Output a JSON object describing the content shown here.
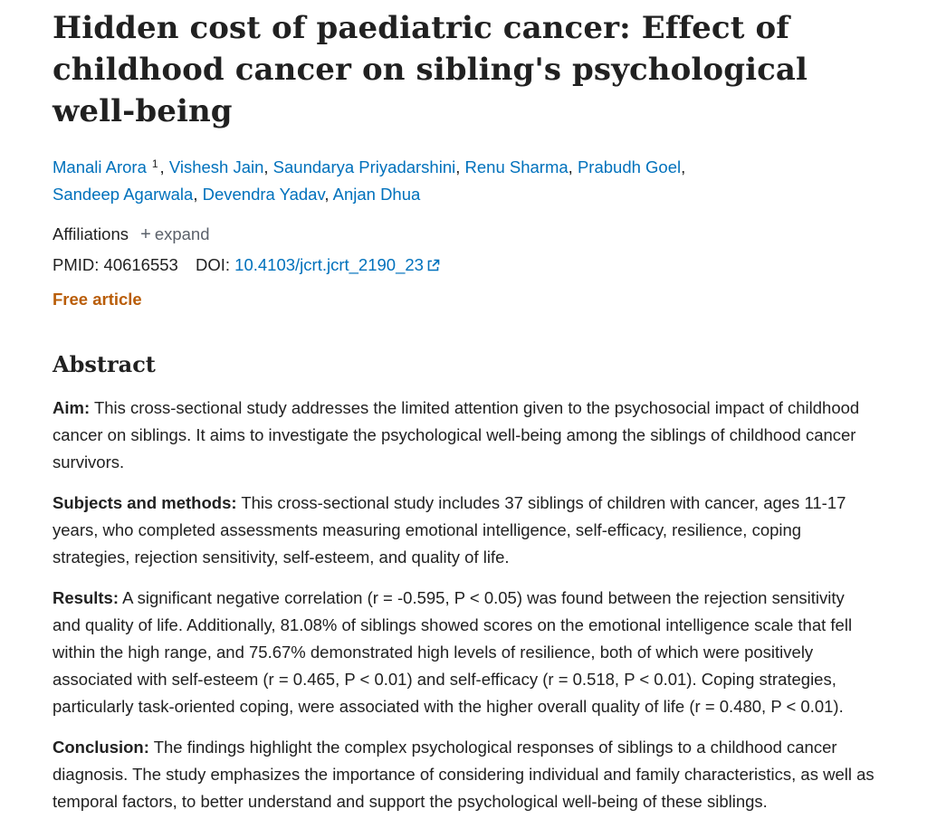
{
  "article": {
    "title": "Hidden cost of paediatric cancer: Effect of childhood cancer on sibling's psychological well-being",
    "authors": [
      {
        "name": "Manali Arora",
        "sup": "1"
      },
      {
        "name": "Vishesh Jain"
      },
      {
        "name": "Saundarya Priyadarshini"
      },
      {
        "name": "Renu Sharma"
      },
      {
        "name": "Prabudh Goel"
      },
      {
        "name": "Sandeep Agarwala"
      },
      {
        "name": "Devendra Yadav"
      },
      {
        "name": "Anjan Dhua"
      }
    ],
    "affiliations_label": "Affiliations",
    "expand_label": "expand",
    "pmid_label": "PMID:",
    "pmid": "40616553",
    "doi_label": "DOI:",
    "doi": "10.4103/jcrt.jcrt_2190_23",
    "free_label": "Free article"
  },
  "abstract": {
    "heading": "Abstract",
    "sections": [
      {
        "label": "Aim:",
        "text": "This cross-sectional study addresses the limited attention given to the psychosocial impact of childhood cancer on siblings. It aims to investigate the psychological well-being among the siblings of childhood cancer survivors."
      },
      {
        "label": "Subjects and methods:",
        "text": "This cross-sectional study includes 37 siblings of children with cancer, ages 11-17 years, who completed assessments measuring emotional intelligence, self-efficacy, resilience, coping strategies, rejection sensitivity, self-esteem, and quality of life."
      },
      {
        "label": "Results:",
        "text": "A significant negative correlation (r = -0.595, P < 0.05) was found between the rejection sensitivity and quality of life. Additionally, 81.08% of siblings showed scores on the emotional intelligence scale that fell within the high range, and 75.67% demonstrated high levels of resilience, both of which were positively associated with self-esteem (r = 0.465, P < 0.01) and self-efficacy (r = 0.518, P < 0.01). Coping strategies, particularly task-oriented coping, were associated with the higher overall quality of life (r = 0.480, P < 0.01)."
      },
      {
        "label": "Conclusion:",
        "text": "The findings highlight the complex psychological responses of siblings to a childhood cancer diagnosis. The study emphasizes the importance of considering individual and family characteristics, as well as temporal factors, to better understand and support the psychological well-being of these siblings."
      }
    ]
  }
}
